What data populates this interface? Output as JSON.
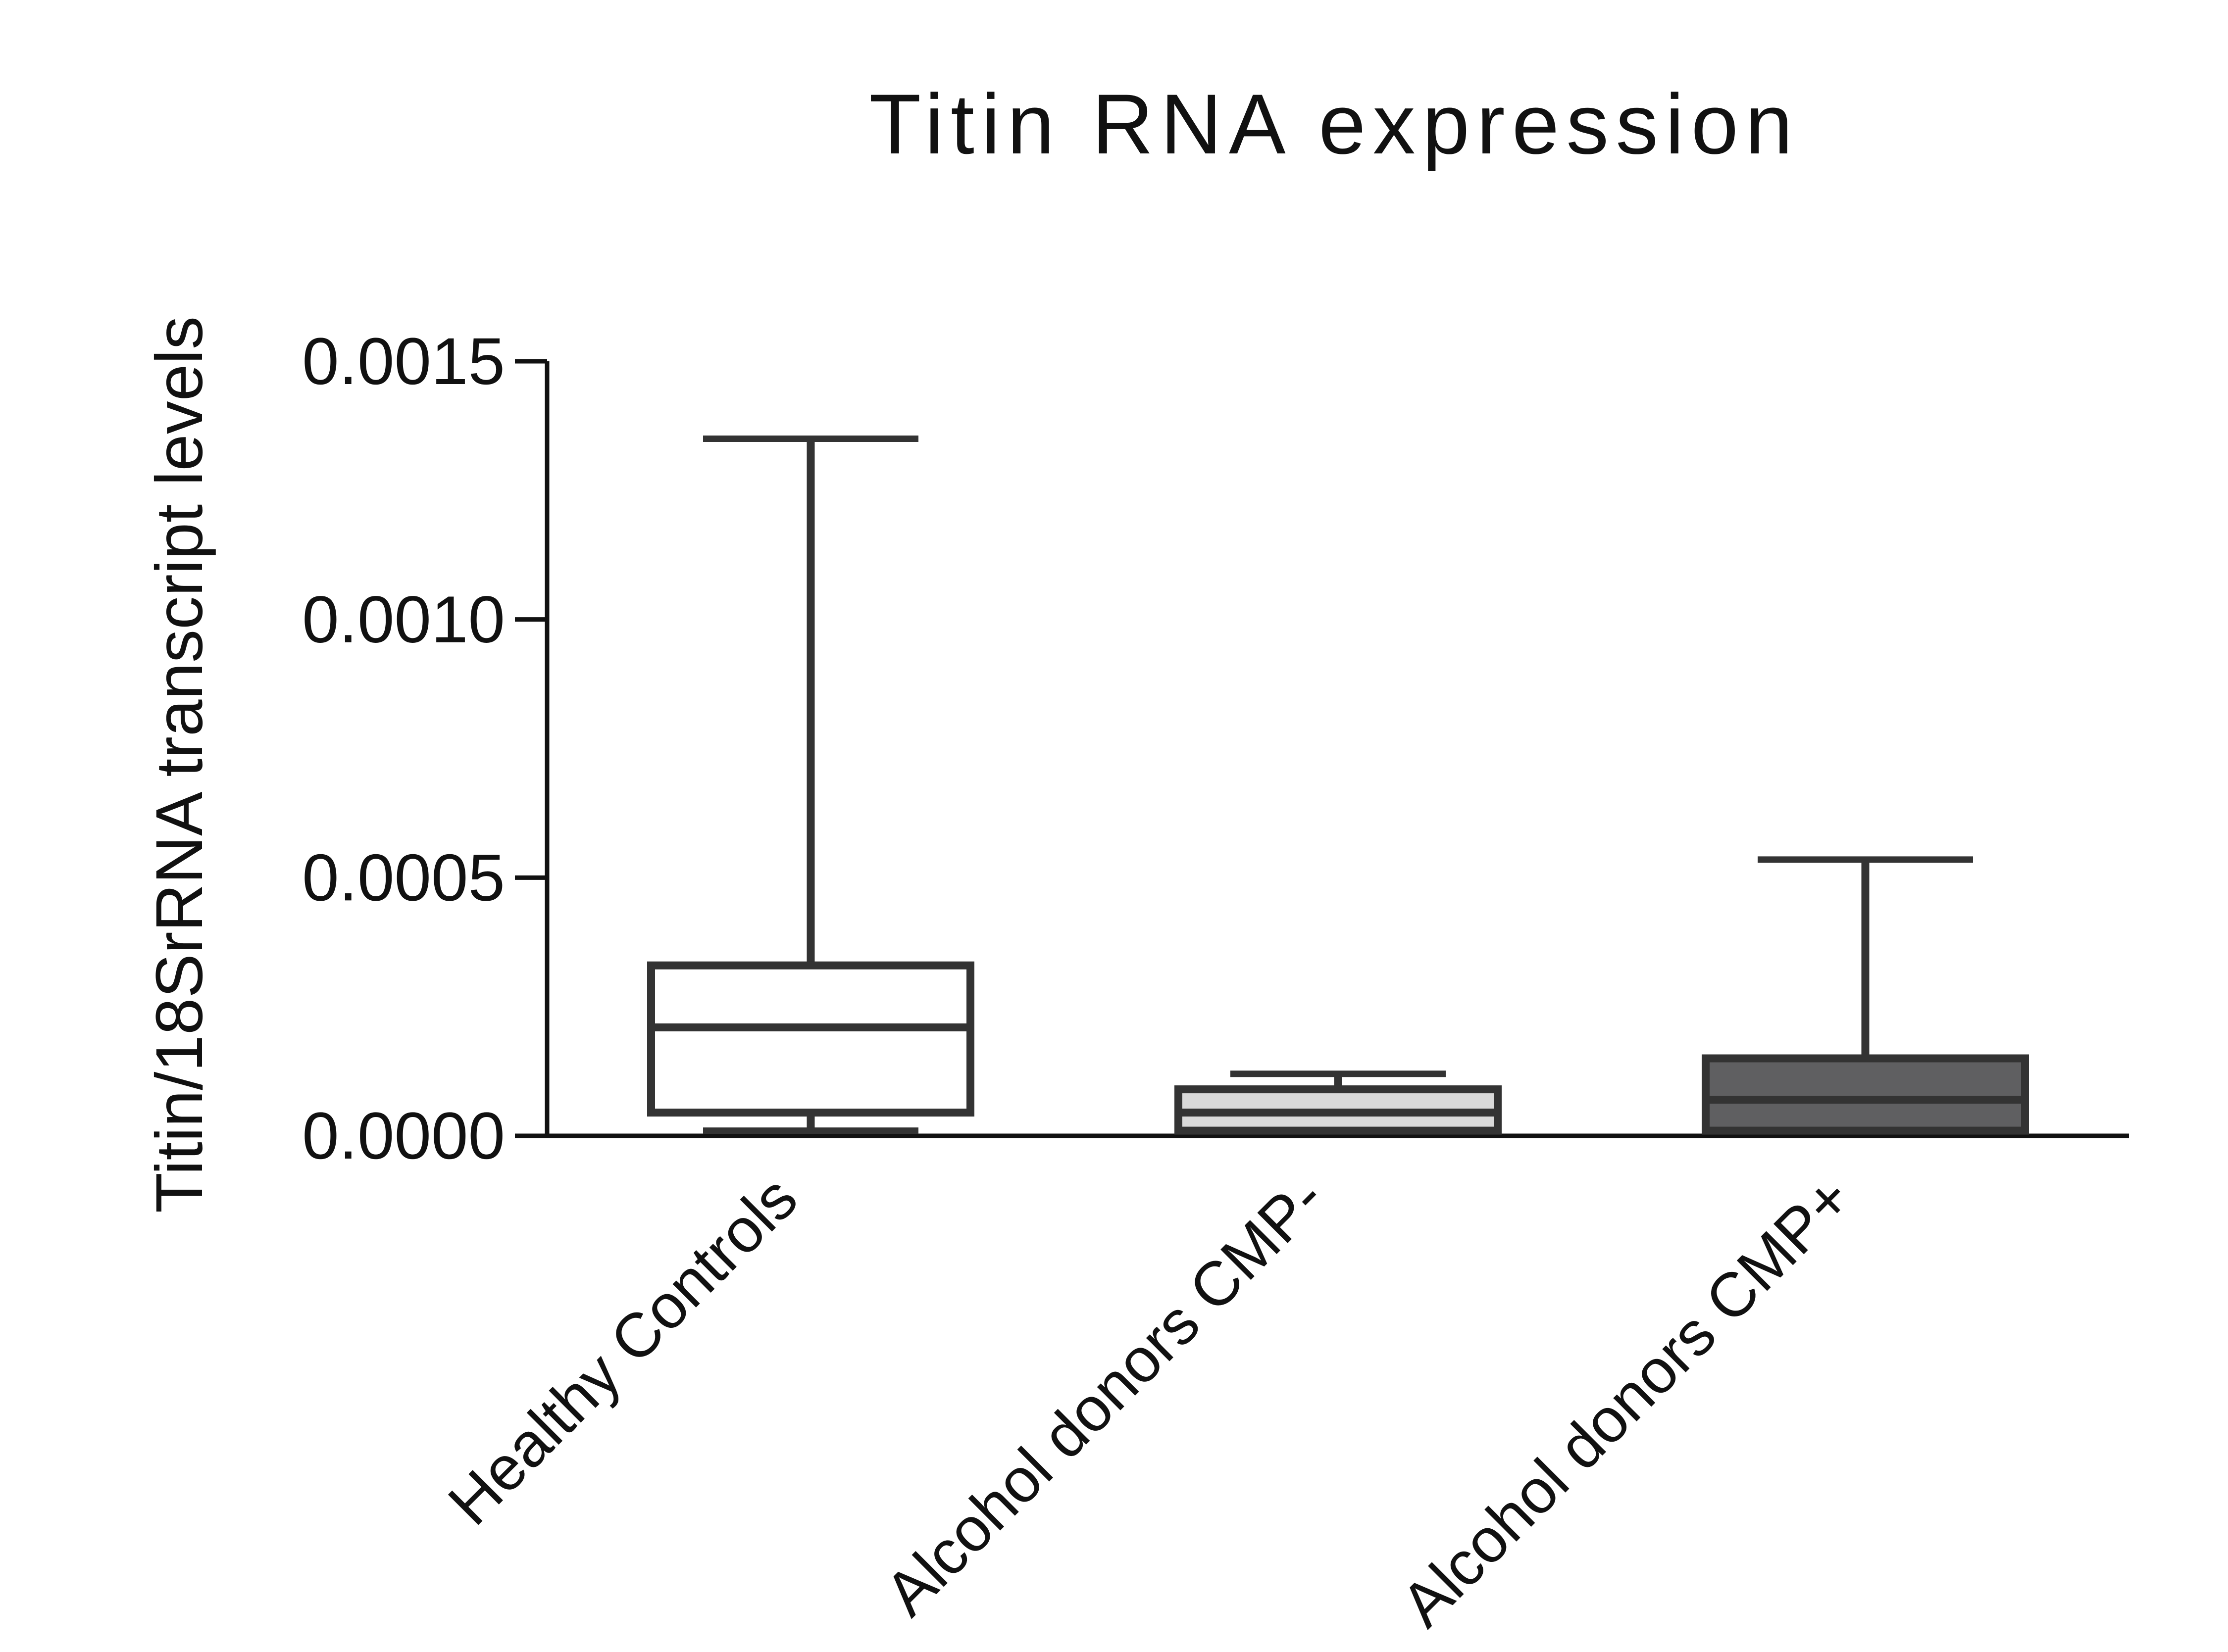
{
  "chart_data": {
    "type": "box",
    "title": "Titin RNA  expression",
    "xlabel": "",
    "ylabel": "Titin/18SrRNA transcript levels",
    "ylim": [
      0,
      0.0015
    ],
    "yticks": [
      0,
      0.0005,
      0.001,
      0.0015
    ],
    "ytick_labels": [
      "0.0000",
      "0.0005",
      "0.0010",
      "0.0015"
    ],
    "grid": false,
    "legend": "none",
    "categories": [
      "Healthy Controls",
      "Alcohol donors CMP-",
      "Alcohol donors CMP+"
    ],
    "boxes": [
      {
        "name": "Healthy Controls",
        "min": 1e-05,
        "q1": 4.5e-05,
        "median": 0.00021,
        "q3": 0.00033,
        "max": 0.00135,
        "fill": "#ffffff"
      },
      {
        "name": "Alcohol donors CMP-",
        "min": 1e-05,
        "q1": 1e-05,
        "median": 4.5e-05,
        "q3": 9e-05,
        "max": 0.00012,
        "fill": "#d9d9d9"
      },
      {
        "name": "Alcohol donors CMP+",
        "min": 1e-05,
        "q1": 1e-05,
        "median": 7e-05,
        "q3": 0.00015,
        "max": 0.000535,
        "fill": "#5f5f61"
      }
    ],
    "colors": {
      "stroke": "#333333",
      "axis": "#111111"
    }
  }
}
